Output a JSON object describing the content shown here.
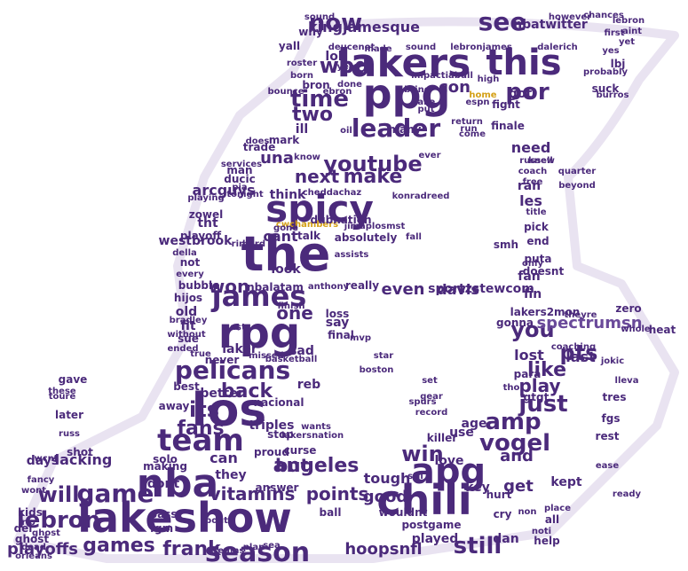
{
  "colors": {
    "primary": "#4b2a7b",
    "secondary": "#6a4a9a",
    "accent": "#d4a017"
  },
  "words": [
    {
      "text": "lakeshow",
      "color": "primary"
    },
    {
      "text": "lakers",
      "color": "primary"
    },
    {
      "text": "ppg",
      "color": "primary"
    },
    {
      "text": "nba",
      "color": "primary"
    },
    {
      "text": "chili",
      "color": "primary"
    },
    {
      "text": "los",
      "color": "primary"
    },
    {
      "text": "the",
      "color": "primary"
    },
    {
      "text": "rpg",
      "color": "primary"
    },
    {
      "text": "spicy",
      "color": "primary"
    },
    {
      "text": "apg",
      "color": "primary"
    },
    {
      "text": "this",
      "color": "primary"
    },
    {
      "text": "team",
      "color": "primary"
    },
    {
      "text": "season",
      "color": "primary"
    },
    {
      "text": "lebron",
      "color": "primary"
    },
    {
      "text": "youtube",
      "color": "primary"
    },
    {
      "text": "james",
      "color": "primary"
    },
    {
      "text": "pelicans",
      "color": "primary"
    },
    {
      "text": "leader",
      "color": "primary"
    },
    {
      "text": "now",
      "color": "primary"
    },
    {
      "text": "see",
      "color": "primary"
    },
    {
      "text": "kingjamesque",
      "color": "primary"
    },
    {
      "text": "wbd",
      "color": "primary"
    },
    {
      "text": "por",
      "color": "primary"
    },
    {
      "text": "time",
      "color": "primary"
    },
    {
      "text": "two",
      "color": "primary"
    },
    {
      "text": "con",
      "color": "primary"
    },
    {
      "text": "next",
      "color": "primary"
    },
    {
      "text": "make",
      "color": "primary"
    },
    {
      "text": "una",
      "color": "primary"
    },
    {
      "text": "won",
      "color": "primary"
    },
    {
      "text": "one",
      "color": "primary"
    },
    {
      "text": "back",
      "color": "primary"
    },
    {
      "text": "its",
      "color": "primary"
    },
    {
      "text": "fans",
      "color": "primary"
    },
    {
      "text": "angeles",
      "color": "primary"
    },
    {
      "text": "but",
      "color": "primary"
    },
    {
      "text": "game",
      "color": "primary"
    },
    {
      "text": "will",
      "color": "primary"
    },
    {
      "text": "vitamins",
      "color": "primary"
    },
    {
      "text": "games",
      "color": "primary"
    },
    {
      "text": "frank",
      "color": "primary"
    },
    {
      "text": "playoffs",
      "color": "primary"
    },
    {
      "text": "hoopsnfl",
      "color": "primary"
    },
    {
      "text": "still",
      "color": "primary"
    },
    {
      "text": "win",
      "color": "primary"
    },
    {
      "text": "amp",
      "color": "primary"
    },
    {
      "text": "vogel",
      "color": "primary"
    },
    {
      "text": "just",
      "color": "primary"
    },
    {
      "text": "play",
      "color": "primary"
    },
    {
      "text": "like",
      "color": "primary"
    },
    {
      "text": "pts",
      "color": "primary"
    },
    {
      "text": "you",
      "color": "primary"
    },
    {
      "text": "and",
      "color": "primary"
    },
    {
      "text": "get",
      "color": "primary"
    },
    {
      "text": "points",
      "color": "primary"
    },
    {
      "text": "good",
      "color": "primary"
    },
    {
      "text": "tough",
      "color": "primary"
    },
    {
      "text": "can",
      "color": "primary"
    },
    {
      "text": "they",
      "color": "primary"
    },
    {
      "text": "even",
      "color": "primary"
    },
    {
      "text": "davis",
      "color": "primary"
    },
    {
      "text": "sportzstewcom",
      "color": "primary"
    },
    {
      "text": "spectrumsn",
      "color": "secondary"
    },
    {
      "text": "cant",
      "color": "primary"
    },
    {
      "text": "westbrook",
      "color": "primary"
    },
    {
      "text": "arcguys",
      "color": "primary"
    },
    {
      "text": "think",
      "color": "primary"
    },
    {
      "text": "look",
      "color": "primary"
    },
    {
      "text": "nbalatam",
      "color": "primary"
    },
    {
      "text": "lol",
      "color": "primary"
    },
    {
      "text": "need",
      "color": "primary"
    },
    {
      "text": "got",
      "color": "primary"
    },
    {
      "text": "fin",
      "color": "primary"
    },
    {
      "text": "lost",
      "color": "primary"
    },
    {
      "text": "last",
      "color": "primary"
    },
    {
      "text": "old",
      "color": "primary"
    },
    {
      "text": "fit",
      "color": "primary"
    },
    {
      "text": "sue",
      "color": "primary"
    },
    {
      "text": "dont",
      "color": "primary"
    },
    {
      "text": "lacking",
      "color": "primary"
    },
    {
      "text": "days",
      "color": "primary"
    },
    {
      "text": "shot",
      "color": "primary"
    },
    {
      "text": "playoff",
      "color": "primary"
    },
    {
      "text": "nbatwitter",
      "color": "primary"
    },
    {
      "text": "deucenot",
      "color": "primary"
    },
    {
      "text": "made",
      "color": "primary"
    },
    {
      "text": "sound",
      "color": "primary"
    },
    {
      "text": "lebronjames",
      "color": "primary"
    },
    {
      "text": "dalerich",
      "color": "primary"
    },
    {
      "text": "yes",
      "color": "primary"
    },
    {
      "text": "yet",
      "color": "primary"
    },
    {
      "text": "tht",
      "color": "primary"
    },
    {
      "text": "les",
      "color": "primary"
    },
    {
      "text": "ran",
      "color": "primary"
    },
    {
      "text": "fan",
      "color": "primary"
    },
    {
      "text": "end",
      "color": "primary"
    },
    {
      "text": "pick",
      "color": "primary"
    },
    {
      "text": "title",
      "color": "primary"
    },
    {
      "text": "free",
      "color": "primary"
    },
    {
      "text": "coach",
      "color": "primary"
    },
    {
      "text": "russell",
      "color": "primary"
    },
    {
      "text": "bron",
      "color": "primary"
    },
    {
      "text": "ill",
      "color": "primary"
    },
    {
      "text": "mark",
      "color": "primary"
    },
    {
      "text": "trade",
      "color": "primary"
    },
    {
      "text": "know",
      "color": "primary"
    },
    {
      "text": "tonight",
      "color": "primary"
    },
    {
      "text": "does",
      "color": "primary"
    },
    {
      "text": "bubble",
      "color": "primary"
    },
    {
      "text": "hijos",
      "color": "primary"
    },
    {
      "text": "not",
      "color": "primary"
    },
    {
      "text": "della",
      "color": "primary"
    },
    {
      "text": "talk",
      "color": "primary"
    },
    {
      "text": "absolutely",
      "color": "primary"
    },
    {
      "text": "assists",
      "color": "primary"
    },
    {
      "text": "anthony",
      "color": "primary"
    },
    {
      "text": "really",
      "color": "primary"
    },
    {
      "text": "finish",
      "color": "primary"
    },
    {
      "text": "loss",
      "color": "primary"
    },
    {
      "text": "say",
      "color": "primary"
    },
    {
      "text": "final",
      "color": "primary"
    },
    {
      "text": "sad",
      "color": "primary"
    },
    {
      "text": "laker",
      "color": "primary"
    },
    {
      "text": "never",
      "color": "primary"
    },
    {
      "text": "basketball",
      "color": "primary"
    },
    {
      "text": "reb",
      "color": "primary"
    },
    {
      "text": "missed",
      "color": "primary"
    },
    {
      "text": "better",
      "color": "primary"
    },
    {
      "text": "nacional",
      "color": "primary"
    },
    {
      "text": "triples",
      "color": "primary"
    },
    {
      "text": "stop",
      "color": "primary"
    },
    {
      "text": "proud",
      "color": "primary"
    },
    {
      "text": "curse",
      "color": "primary"
    },
    {
      "text": "wants",
      "color": "primary"
    },
    {
      "text": "lakersnation",
      "color": "primary"
    },
    {
      "text": "answer",
      "color": "primary"
    },
    {
      "text": "ball",
      "color": "primary"
    },
    {
      "text": "played",
      "color": "primary"
    },
    {
      "text": "postgame",
      "color": "primary"
    },
    {
      "text": "wouldnt",
      "color": "primary"
    },
    {
      "text": "love",
      "color": "primary"
    },
    {
      "text": "use",
      "color": "primary"
    },
    {
      "text": "age",
      "color": "primary"
    },
    {
      "text": "para",
      "color": "primary"
    },
    {
      "text": "set",
      "color": "primary"
    },
    {
      "text": "gtgt",
      "color": "primary"
    },
    {
      "text": "gonna",
      "color": "primary"
    },
    {
      "text": "tho",
      "color": "primary"
    },
    {
      "text": "key",
      "color": "primary"
    },
    {
      "text": "hurt",
      "color": "primary"
    },
    {
      "text": "cry",
      "color": "primary"
    },
    {
      "text": "non",
      "color": "primary"
    },
    {
      "text": "all",
      "color": "primary"
    },
    {
      "text": "kept",
      "color": "primary"
    },
    {
      "text": "rest",
      "color": "primary"
    },
    {
      "text": "tres",
      "color": "primary"
    },
    {
      "text": "fgs",
      "color": "primary"
    },
    {
      "text": "lleva",
      "color": "primary"
    },
    {
      "text": "jokic",
      "color": "primary"
    },
    {
      "text": "whole",
      "color": "primary"
    },
    {
      "text": "killer",
      "color": "primary"
    },
    {
      "text": "record",
      "color": "primary"
    },
    {
      "text": "gear",
      "color": "primary"
    },
    {
      "text": "spurs",
      "color": "primary"
    },
    {
      "text": "making",
      "color": "primary"
    },
    {
      "text": "solo",
      "color": "primary"
    },
    {
      "text": "away",
      "color": "primary"
    },
    {
      "text": "best",
      "color": "primary"
    },
    {
      "text": "gave",
      "color": "primary"
    },
    {
      "text": "later",
      "color": "primary"
    },
    {
      "text": "russ",
      "color": "primary"
    },
    {
      "text": "kids",
      "color": "primary"
    },
    {
      "text": "del",
      "color": "primary"
    },
    {
      "text": "ghost",
      "color": "primary"
    },
    {
      "text": "orleans",
      "color": "primary"
    },
    {
      "text": "pass",
      "color": "primary"
    },
    {
      "text": "fgm",
      "color": "primary"
    },
    {
      "text": "bout",
      "color": "primary"
    },
    {
      "text": "teams",
      "color": "primary"
    },
    {
      "text": "plan",
      "color": "primary"
    },
    {
      "text": "sea",
      "color": "primary"
    },
    {
      "text": "fight",
      "color": "primary"
    },
    {
      "text": "finale",
      "color": "primary"
    },
    {
      "text": "return",
      "color": "primary"
    },
    {
      "text": "many",
      "color": "primary"
    },
    {
      "text": "yall",
      "color": "primary"
    },
    {
      "text": "roster",
      "color": "primary"
    },
    {
      "text": "year",
      "color": "primary"
    },
    {
      "text": "high",
      "color": "primary"
    },
    {
      "text": "espn",
      "color": "primary"
    },
    {
      "text": "bring",
      "color": "primary"
    },
    {
      "text": "take",
      "color": "primary"
    },
    {
      "text": "put",
      "color": "primary"
    },
    {
      "text": "home",
      "color": "accent"
    },
    {
      "text": "done",
      "color": "primary"
    },
    {
      "text": "run",
      "color": "primary"
    },
    {
      "text": "come",
      "color": "primary"
    },
    {
      "text": "suck",
      "color": "primary"
    },
    {
      "text": "lbj",
      "color": "primary"
    },
    {
      "text": "why",
      "color": "primary"
    },
    {
      "text": "born",
      "color": "primary"
    },
    {
      "text": "man",
      "color": "primary"
    },
    {
      "text": "ducic",
      "color": "primary"
    },
    {
      "text": "pia",
      "color": "primary"
    },
    {
      "text": "zowel",
      "color": "primary"
    },
    {
      "text": "playing",
      "color": "primary"
    },
    {
      "text": "services",
      "color": "primary"
    },
    {
      "text": "cwchambers",
      "color": "accent"
    },
    {
      "text": "dubnation",
      "color": "primary"
    },
    {
      "text": "jimaplosmst",
      "color": "primary"
    },
    {
      "text": "cheddachaz",
      "color": "primary"
    },
    {
      "text": "konradreed",
      "color": "primary"
    },
    {
      "text": "smh",
      "color": "primary"
    },
    {
      "text": "puta",
      "color": "primary"
    },
    {
      "text": "doesnt",
      "color": "primary"
    },
    {
      "text": "only",
      "color": "primary"
    },
    {
      "text": "lakers2mon",
      "color": "primary"
    },
    {
      "text": "zero",
      "color": "primary"
    },
    {
      "text": "theyre",
      "color": "primary"
    },
    {
      "text": "coaching",
      "color": "primary"
    },
    {
      "text": "heat",
      "color": "primary"
    },
    {
      "text": "dan",
      "color": "primary"
    },
    {
      "text": "help",
      "color": "primary"
    },
    {
      "text": "noti",
      "color": "primary"
    },
    {
      "text": "place",
      "color": "primary"
    },
    {
      "text": "ready",
      "color": "primary"
    },
    {
      "text": "ease",
      "color": "primary"
    },
    {
      "text": "stil",
      "color": "primary"
    },
    {
      "text": "ghost",
      "color": "primary"
    },
    {
      "text": "wont",
      "color": "primary"
    },
    {
      "text": "impactiabull",
      "color": "primary"
    },
    {
      "text": "ebron",
      "color": "primary"
    },
    {
      "text": "sound",
      "color": "primary"
    },
    {
      "text": "aint",
      "color": "primary"
    },
    {
      "text": "chances",
      "color": "primary"
    },
    {
      "text": "however",
      "color": "primary"
    },
    {
      "text": "lebron",
      "color": "primary"
    },
    {
      "text": "probably",
      "color": "primary"
    },
    {
      "text": "first",
      "color": "primary"
    },
    {
      "text": "oil",
      "color": "primary"
    },
    {
      "text": "ever",
      "color": "primary"
    },
    {
      "text": "mvp",
      "color": "primary"
    },
    {
      "text": "star",
      "color": "primary"
    },
    {
      "text": "ast",
      "color": "primary"
    },
    {
      "text": "boston",
      "color": "primary"
    },
    {
      "text": "true",
      "color": "primary"
    },
    {
      "text": "burros",
      "color": "primary"
    },
    {
      "text": "quarter",
      "color": "primary"
    },
    {
      "text": "beyond",
      "color": "primary"
    },
    {
      "text": "knew",
      "color": "primary"
    },
    {
      "text": "bounce",
      "color": "primary"
    },
    {
      "text": "gone",
      "color": "primary"
    },
    {
      "text": "hard",
      "color": "primary"
    },
    {
      "text": "ring",
      "color": "primary"
    },
    {
      "text": "fall",
      "color": "primary"
    },
    {
      "text": "dead",
      "color": "primary"
    },
    {
      "text": "rip",
      "color": "primary"
    },
    {
      "text": "wcnt",
      "color": "primary"
    },
    {
      "text": "fancy",
      "color": "primary"
    },
    {
      "text": "these",
      "color": "primary"
    },
    {
      "text": "toure",
      "color": "primary"
    },
    {
      "text": "ended",
      "color": "primary"
    },
    {
      "text": "without",
      "color": "primary"
    },
    {
      "text": "every",
      "color": "primary"
    },
    {
      "text": "bradley",
      "color": "primary"
    }
  ]
}
